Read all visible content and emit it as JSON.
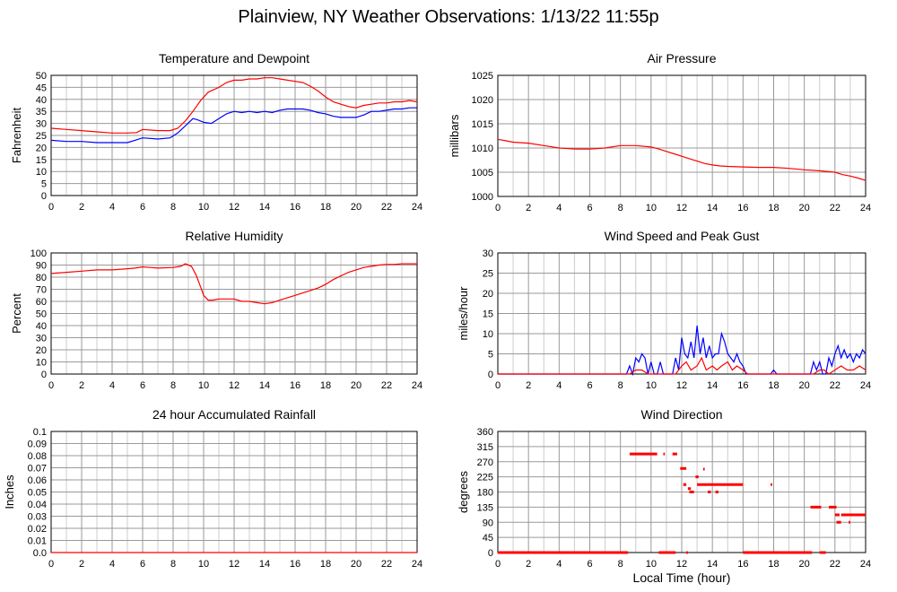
{
  "title": "Plainview, NY Weather Observations: 1/13/22 11:55p",
  "xlabel": "Local Time (hour)",
  "colors": {
    "red": "#ff0000",
    "blue": "#0000ff",
    "grid": "#999999"
  },
  "chart_data": [
    {
      "id": "temp",
      "type": "line",
      "title": "Temperature and Dewpoint",
      "ylabel": "Fahrenheit",
      "xlim": [
        0,
        24
      ],
      "ylim": [
        0,
        50
      ],
      "xticks": [
        "0",
        "2",
        "4",
        "6",
        "8",
        "10",
        "12",
        "14",
        "16",
        "18",
        "20",
        "22",
        "24"
      ],
      "yticks": [
        "0",
        "5",
        "10",
        "15",
        "20",
        "25",
        "30",
        "35",
        "40",
        "45",
        "50"
      ],
      "series": [
        {
          "color": "#ff0000",
          "x": [
            0,
            1,
            2,
            3,
            4,
            5,
            5.6,
            6,
            7,
            7.8,
            8.3,
            8.8,
            9.3,
            9.8,
            10.3,
            11,
            11.5,
            12,
            12.5,
            13,
            13.5,
            14,
            14.5,
            15,
            15.5,
            16,
            16.5,
            17,
            17.5,
            18,
            18.5,
            19,
            19.5,
            20,
            20.5,
            21,
            21.5,
            22,
            22.5,
            23,
            23.5,
            24
          ],
          "y": [
            28,
            27.5,
            27,
            26.5,
            26,
            26,
            26.2,
            27.5,
            27,
            27,
            28,
            31,
            35,
            39.5,
            43,
            45,
            47,
            48,
            48,
            48.5,
            48.5,
            49,
            49,
            48.5,
            48,
            47.5,
            47,
            45.5,
            43.5,
            41,
            39,
            38,
            37,
            36.5,
            37.5,
            38,
            38.5,
            38.5,
            39,
            39,
            39.5,
            39
          ]
        },
        {
          "color": "#0000ff",
          "x": [
            0,
            1,
            2,
            3,
            4,
            5,
            5.5,
            6,
            7,
            7.8,
            8.3,
            8.8,
            9.3,
            9.6,
            10,
            10.5,
            11,
            11.5,
            12,
            12.5,
            13,
            13.5,
            14,
            14.5,
            15,
            15.5,
            16,
            16.5,
            17,
            17.5,
            18,
            18.5,
            19,
            19.5,
            20,
            20.5,
            21,
            21.5,
            22,
            22.5,
            23,
            23.5,
            24
          ],
          "y": [
            23,
            22.5,
            22.5,
            22,
            22,
            22,
            23,
            24,
            23.5,
            24,
            26,
            29,
            32,
            31.5,
            30.5,
            30,
            32,
            34,
            35,
            34.5,
            35,
            34.5,
            35,
            34.5,
            35.5,
            36,
            36,
            36,
            35.5,
            34.5,
            34,
            33,
            32.5,
            32.5,
            32.5,
            33.5,
            35,
            35,
            35.5,
            36,
            36,
            36.5,
            36.5
          ]
        }
      ]
    },
    {
      "id": "pressure",
      "type": "line",
      "title": "Air Pressure",
      "ylabel": "millibars",
      "xlim": [
        0,
        24
      ],
      "ylim": [
        1000,
        1025
      ],
      "xticks": [
        "0",
        "2",
        "4",
        "6",
        "8",
        "10",
        "12",
        "14",
        "16",
        "18",
        "20",
        "22",
        "24"
      ],
      "yticks": [
        "1000",
        "1005",
        "1010",
        "1015",
        "1020",
        "1025"
      ],
      "series": [
        {
          "color": "#ff0000",
          "x": [
            0,
            0.5,
            1,
            2,
            3,
            4,
            5,
            6,
            7,
            8,
            9,
            10,
            10.5,
            11,
            11.5,
            12,
            12.5,
            13,
            13.5,
            14,
            14.5,
            15,
            16,
            17,
            18,
            19,
            20,
            21,
            22,
            22.5,
            23,
            23.5,
            24
          ],
          "y": [
            1011.8,
            1011.5,
            1011.2,
            1011,
            1010.5,
            1010,
            1009.8,
            1009.8,
            1010,
            1010.5,
            1010.5,
            1010.2,
            1009.8,
            1009.3,
            1008.8,
            1008.3,
            1007.8,
            1007.3,
            1006.8,
            1006.5,
            1006.3,
            1006.2,
            1006.1,
            1006,
            1006,
            1005.8,
            1005.5,
            1005.3,
            1005,
            1004.5,
            1004.2,
            1003.8,
            1003.3
          ]
        }
      ]
    },
    {
      "id": "humidity",
      "type": "line",
      "title": "Relative Humidity",
      "ylabel": "Percent",
      "xlim": [
        0,
        24
      ],
      "ylim": [
        0,
        100
      ],
      "xticks": [
        "0",
        "2",
        "4",
        "6",
        "8",
        "10",
        "12",
        "14",
        "16",
        "18",
        "20",
        "22",
        "24"
      ],
      "yticks": [
        "0",
        "10",
        "20",
        "30",
        "40",
        "50",
        "60",
        "70",
        "80",
        "90",
        "100"
      ],
      "series": [
        {
          "color": "#ff0000",
          "x": [
            0,
            1,
            2,
            3,
            4,
            5,
            5.5,
            6,
            6.5,
            7,
            8,
            8.5,
            8.8,
            9.2,
            9.5,
            9.8,
            10,
            10.3,
            10.6,
            11,
            11.5,
            12,
            12.5,
            13,
            13.5,
            14,
            14.5,
            15,
            15.5,
            16,
            16.5,
            17,
            17.5,
            18,
            18.5,
            19,
            19.5,
            20,
            20.5,
            21,
            21.5,
            22,
            22.5,
            23,
            23.5,
            24
          ],
          "y": [
            83,
            84,
            85,
            86,
            86,
            87,
            87.5,
            88.5,
            88,
            87.5,
            88,
            89,
            91,
            89,
            82,
            72,
            65,
            61,
            61,
            62,
            62,
            62,
            60,
            60,
            59,
            58,
            59,
            61,
            63,
            65,
            67,
            69,
            71,
            74,
            78,
            81,
            84,
            86,
            88,
            89,
            90,
            90.5,
            90.5,
            91,
            91,
            91
          ]
        }
      ]
    },
    {
      "id": "wind",
      "type": "line",
      "title": "Wind Speed and Peak Gust",
      "ylabel": "miles/hour",
      "xlim": [
        0,
        24
      ],
      "ylim": [
        0,
        30
      ],
      "xticks": [
        "0",
        "2",
        "4",
        "6",
        "8",
        "10",
        "12",
        "14",
        "16",
        "18",
        "20",
        "22",
        "24"
      ],
      "yticks": [
        "0",
        "5",
        "10",
        "15",
        "20",
        "25",
        "30"
      ],
      "series": [
        {
          "color": "#0000ff",
          "x": [
            0,
            8.4,
            8.6,
            8.8,
            9,
            9.2,
            9.4,
            9.6,
            9.8,
            10,
            10.2,
            10.4,
            10.6,
            10.8,
            11,
            11.2,
            11.4,
            11.6,
            11.8,
            12,
            12.2,
            12.4,
            12.6,
            12.8,
            13,
            13.2,
            13.4,
            13.6,
            13.8,
            14,
            14.2,
            14.4,
            14.6,
            14.8,
            15,
            15.2,
            15.4,
            15.6,
            15.8,
            16,
            16.2,
            17.8,
            18,
            18.2,
            20.4,
            20.6,
            20.8,
            21,
            21.2,
            21.4,
            21.6,
            21.8,
            22,
            22.2,
            22.4,
            22.6,
            22.8,
            23,
            23.2,
            23.4,
            23.6,
            23.8,
            24
          ],
          "y": [
            0,
            0,
            2,
            0,
            4,
            3,
            5,
            4,
            0,
            3,
            0,
            0,
            3,
            0,
            0,
            0,
            0,
            4,
            1,
            9,
            5,
            4,
            8,
            4,
            12,
            5,
            9,
            4,
            7,
            4,
            5,
            5,
            10,
            8,
            5,
            4,
            3,
            5,
            3,
            2,
            0,
            0,
            1,
            0,
            0,
            3,
            1,
            3,
            0,
            0,
            4,
            2,
            5,
            7,
            4,
            6,
            4,
            5,
            3,
            5,
            4,
            6,
            5
          ]
        },
        {
          "color": "#ff0000",
          "x": [
            0,
            8.6,
            9,
            9.4,
            9.8,
            10.2,
            11.6,
            12,
            12.3,
            12.6,
            13,
            13.3,
            13.6,
            14,
            14.3,
            14.6,
            15,
            15.3,
            15.6,
            16,
            16.3,
            20.6,
            21,
            21.3,
            21.6,
            22,
            22.4,
            22.8,
            23.2,
            23.6,
            24
          ],
          "y": [
            0,
            0,
            1,
            1,
            0,
            0,
            0,
            2,
            3,
            1,
            2,
            4,
            1,
            2,
            1,
            2,
            3,
            1,
            2,
            1,
            0,
            0,
            1,
            1,
            0,
            1,
            2,
            1,
            1,
            2,
            1
          ]
        }
      ]
    },
    {
      "id": "rain",
      "type": "line",
      "title": "24 hour Accumulated Rainfall",
      "ylabel": "Inches",
      "xlim": [
        0,
        24
      ],
      "ylim": [
        0,
        0.1
      ],
      "xticks": [
        "0",
        "2",
        "4",
        "6",
        "8",
        "10",
        "12",
        "14",
        "16",
        "18",
        "20",
        "22",
        "24"
      ],
      "yticks": [
        "0.0",
        "0.01",
        "0.02",
        "0.03",
        "0.04",
        "0.05",
        "0.06",
        "0.07",
        "0.08",
        "0.09",
        "0.1"
      ],
      "series": [
        {
          "color": "#ff0000",
          "x": [
            0,
            24
          ],
          "y": [
            0,
            0
          ]
        }
      ]
    },
    {
      "id": "direction",
      "type": "scatter",
      "title": "Wind Direction",
      "ylabel": "degrees",
      "xlim": [
        0,
        24
      ],
      "ylim": [
        0,
        360
      ],
      "xticks": [
        "0",
        "2",
        "4",
        "6",
        "8",
        "10",
        "12",
        "14",
        "16",
        "18",
        "20",
        "22",
        "24"
      ],
      "yticks": [
        "0",
        "45",
        "90",
        "135",
        "180",
        "225",
        "270",
        "315",
        "360"
      ],
      "segments": [
        {
          "x0": 0,
          "x1": 8.5,
          "y": 0
        },
        {
          "x0": 8.6,
          "x1": 10.4,
          "y": 293
        },
        {
          "x0": 10.5,
          "x1": 11.6,
          "y": 0
        },
        {
          "x0": 10.8,
          "x1": 10.9,
          "y": 293
        },
        {
          "x0": 11.4,
          "x1": 11.7,
          "y": 293
        },
        {
          "x0": 11.9,
          "x1": 12.3,
          "y": 250
        },
        {
          "x0": 12.1,
          "x1": 12.3,
          "y": 202
        },
        {
          "x0": 12.3,
          "x1": 12.4,
          "y": 0
        },
        {
          "x0": 12.4,
          "x1": 12.6,
          "y": 190
        },
        {
          "x0": 12.5,
          "x1": 12.8,
          "y": 180
        },
        {
          "x0": 12.9,
          "x1": 13.1,
          "y": 225
        },
        {
          "x0": 13.0,
          "x1": 16.0,
          "y": 202
        },
        {
          "x0": 13.4,
          "x1": 13.5,
          "y": 248
        },
        {
          "x0": 13.7,
          "x1": 13.9,
          "y": 180
        },
        {
          "x0": 14.2,
          "x1": 14.4,
          "y": 180
        },
        {
          "x0": 16.0,
          "x1": 20.5,
          "y": 0
        },
        {
          "x0": 17.8,
          "x1": 17.9,
          "y": 202
        },
        {
          "x0": 20.4,
          "x1": 21.1,
          "y": 135
        },
        {
          "x0": 21.0,
          "x1": 21.4,
          "y": 0
        },
        {
          "x0": 21.6,
          "x1": 22.1,
          "y": 135
        },
        {
          "x0": 22.0,
          "x1": 22.3,
          "y": 112
        },
        {
          "x0": 22.1,
          "x1": 22.4,
          "y": 90
        },
        {
          "x0": 22.4,
          "x1": 24.0,
          "y": 112
        },
        {
          "x0": 22.9,
          "x1": 23.0,
          "y": 90
        }
      ]
    }
  ]
}
